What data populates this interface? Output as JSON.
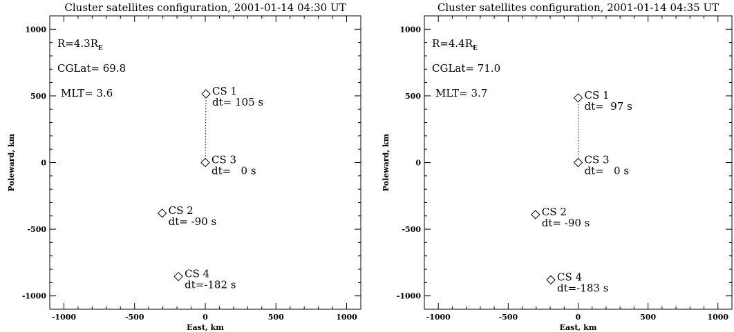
{
  "chart_data": [
    {
      "type": "scatter",
      "title": "Cluster satellites configuration, 2001-01-14 04:30 UT",
      "xlabel": "East, km",
      "ylabel": "Poleward, km",
      "xlim": [
        -1100,
        1100
      ],
      "ylim": [
        -1100,
        1100
      ],
      "xticks": [
        -1000,
        -500,
        0,
        500,
        1000
      ],
      "yticks": [
        -1000,
        -500,
        0,
        500,
        1000
      ],
      "annotations": {
        "radius_label": "R=4.3R",
        "radius_sub": "E",
        "cglat": "CGLat= 69.8",
        "mlt": "MLT= 3.6"
      },
      "points": [
        {
          "name": "CS 1",
          "x": 5,
          "y": 515,
          "dt": "dt= 105 s"
        },
        {
          "name": "CS 3",
          "x": 0,
          "y": 0,
          "dt": "dt=   0 s"
        },
        {
          "name": "CS 2",
          "x": -305,
          "y": -380,
          "dt": "dt= -90 s"
        },
        {
          "name": "CS 4",
          "x": -190,
          "y": -855,
          "dt": "dt=-182 s"
        }
      ],
      "connector": [
        "CS 1",
        "CS 3"
      ],
      "marker": "diamond",
      "grid": false
    },
    {
      "type": "scatter",
      "title": "Cluster satellites configuration, 2001-01-14 04:35 UT",
      "xlabel": "East, km",
      "ylabel": "Poleward, km",
      "xlim": [
        -1100,
        1100
      ],
      "ylim": [
        -1100,
        1100
      ],
      "xticks": [
        -1000,
        -500,
        0,
        500,
        1000
      ],
      "yticks": [
        -1000,
        -500,
        0,
        500,
        1000
      ],
      "annotations": {
        "radius_label": "R=4.4R",
        "radius_sub": "E",
        "cglat": "CGLat= 71.0",
        "mlt": "MLT= 3.7"
      },
      "points": [
        {
          "name": "CS 1",
          "x": 0,
          "y": 485,
          "dt": "dt=  97 s"
        },
        {
          "name": "CS 3",
          "x": 0,
          "y": 0,
          "dt": "dt=   0 s"
        },
        {
          "name": "CS 2",
          "x": -305,
          "y": -390,
          "dt": "dt= -90 s"
        },
        {
          "name": "CS 4",
          "x": -195,
          "y": -880,
          "dt": "dt=-183 s"
        }
      ],
      "connector": [
        "CS 1",
        "CS 3"
      ],
      "marker": "diamond",
      "grid": false
    }
  ]
}
